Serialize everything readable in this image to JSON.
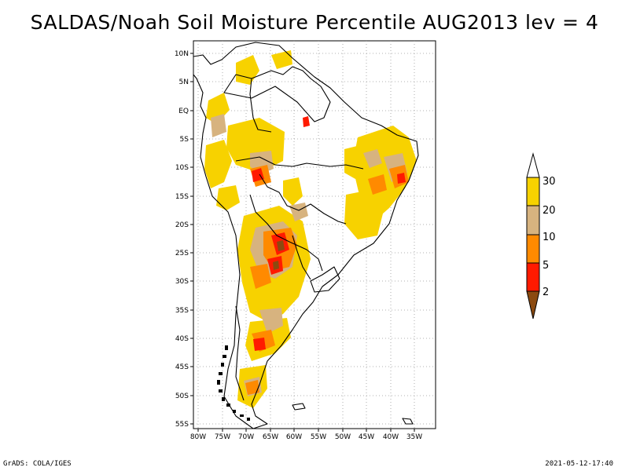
{
  "title": "SALDAS/Noah Soil Moisture Percentile AUG2013 lev = 4",
  "footer": {
    "left": "GrADS: COLA/IGES",
    "right": "2021-05-12-17:40"
  },
  "map": {
    "region": "South America",
    "lon_range": [
      -81,
      -33
    ],
    "lat_range": [
      -56,
      12
    ],
    "lon_ticks": [
      "80W",
      "75W",
      "70W",
      "65W",
      "60W",
      "55W",
      "50W",
      "45W",
      "40W",
      "35W"
    ],
    "lat_ticks": [
      "10N",
      "5N",
      "EQ",
      "5S",
      "10S",
      "15S",
      "20S",
      "25S",
      "30S",
      "35S",
      "40S",
      "45S",
      "50S",
      "55S"
    ],
    "grid": "dotted"
  },
  "legend": {
    "labels": [
      "30",
      "20",
      "10",
      "5",
      "2"
    ],
    "colors": {
      "above30": "#ffffff",
      "c20_30": "#f7d200",
      "c10_20": "#d7b37f",
      "c5_10": "#ff8a00",
      "c2_5": "#ff1a00",
      "below2": "#8b4a10"
    }
  }
}
